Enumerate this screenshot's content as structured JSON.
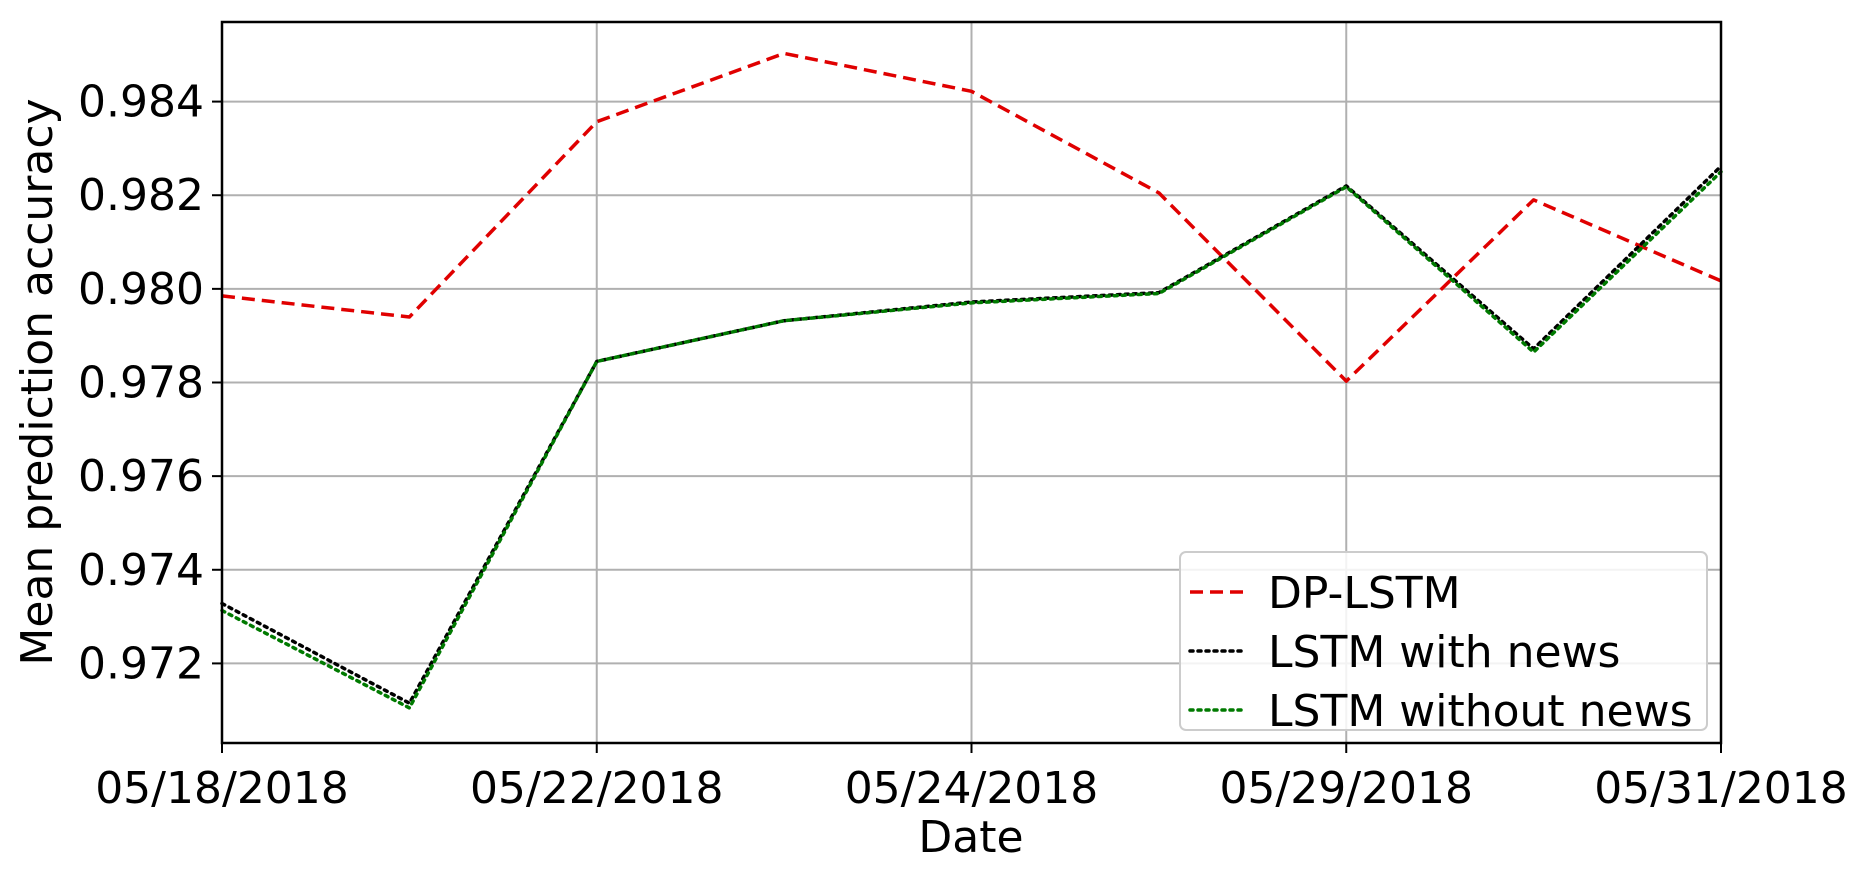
{
  "chart_data": {
    "type": "line",
    "title": "",
    "xlabel": "Date",
    "ylabel": "Mean prediction accuracy",
    "x_tick_labels": [
      "05/18/2018",
      "05/22/2018",
      "05/24/2018",
      "05/29/2018",
      "05/31/2018"
    ],
    "y_tick_labels": [
      "0.972",
      "0.974",
      "0.976",
      "0.978",
      "0.980",
      "0.982",
      "0.984"
    ],
    "ylim": [
      0.9703,
      0.9857
    ],
    "grid": true,
    "legend_position": "bottom-right",
    "series": [
      {
        "name": "DP-LSTM",
        "color": "#e00000",
        "line_style": "dashed",
        "values": [
          0.97985,
          0.9794,
          0.98357,
          0.98503,
          0.98422,
          0.98205,
          0.97803,
          0.9819,
          0.98017
        ]
      },
      {
        "name": "LSTM with news",
        "color": "#000000",
        "line_style": "dotted",
        "values": [
          0.97328,
          0.97115,
          0.97845,
          0.97932,
          0.97972,
          0.97992,
          0.9822,
          0.97872,
          0.98262
        ]
      },
      {
        "name": "LSTM without news",
        "color": "#007a00",
        "line_style": "dotted",
        "values": [
          0.97313,
          0.97105,
          0.97845,
          0.97932,
          0.9797,
          0.9799,
          0.98218,
          0.97865,
          0.9825
        ]
      }
    ]
  }
}
